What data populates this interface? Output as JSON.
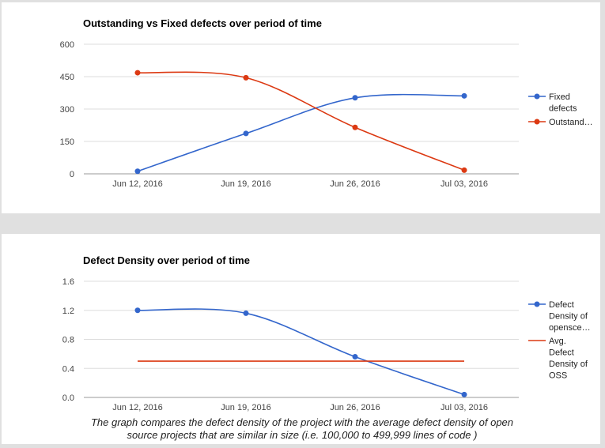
{
  "colors": {
    "blue": "#3366cc",
    "red": "#dc3912",
    "grid": "#dddddd",
    "baseline": "#999999"
  },
  "chart_data": [
    {
      "type": "line",
      "title": "Outstanding vs Fixed defects over period of time",
      "categories": [
        "Jun 12, 2016",
        "Jun 19, 2016",
        "Jun 26, 2016",
        "Jul 03, 2016"
      ],
      "y_ticks": [
        "0",
        "150",
        "300",
        "450",
        "600"
      ],
      "ylim": [
        0,
        600
      ],
      "grid": true,
      "legend": "right",
      "series": [
        {
          "name": "Fixed defects",
          "legend_lines": [
            "Fixed",
            "defects"
          ],
          "color": "#3366cc",
          "values": [
            12,
            187,
            352,
            361
          ],
          "points": true
        },
        {
          "name": "Outstand…",
          "legend_lines": [
            "Outstand…"
          ],
          "color": "#dc3912",
          "values": [
            468,
            445,
            215,
            17
          ],
          "points": true
        }
      ]
    },
    {
      "type": "line",
      "title": "Defect Density over period of time",
      "categories": [
        "Jun 12, 2016",
        "Jun 19, 2016",
        "Jun 26, 2016",
        "Jul 03, 2016"
      ],
      "y_ticks": [
        "0.0",
        "0.4",
        "0.8",
        "1.2",
        "1.6"
      ],
      "ylim": [
        0,
        1.6
      ],
      "grid": true,
      "legend": "right",
      "caption": "The graph compares the defect density of the project with the average defect density of open source projects that are similar in size (i.e. 100,000 to 499,999 lines of code )",
      "series": [
        {
          "name": "Defect Density of opensce…",
          "legend_lines": [
            "Defect",
            "Density of",
            "opensce…"
          ],
          "color": "#3366cc",
          "values": [
            1.2,
            1.16,
            0.56,
            0.04
          ],
          "points": true
        },
        {
          "name": "Avg. Defect Density of OSS",
          "legend_lines": [
            "Avg.",
            "Defect",
            "Density of",
            "OSS"
          ],
          "color": "#dc3912",
          "values": [
            0.5,
            0.5,
            0.5,
            0.5
          ],
          "points": false
        }
      ]
    }
  ]
}
